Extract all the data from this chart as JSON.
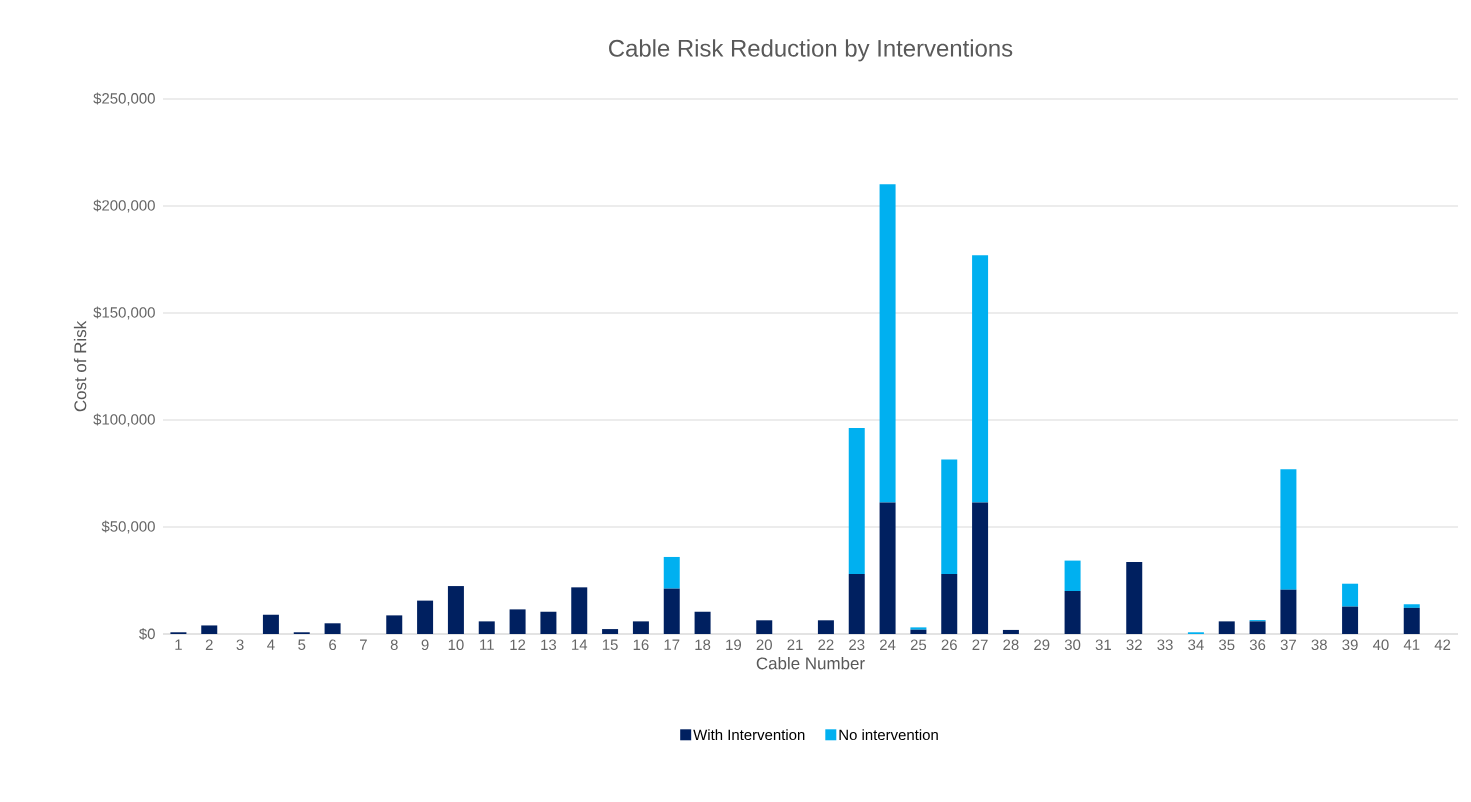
{
  "chart_data": {
    "type": "bar",
    "stacked": true,
    "title": "Cable Risk Reduction by Interventions",
    "xlabel": "Cable Number",
    "ylabel": "Cost of Risk",
    "categories": [
      "1",
      "2",
      "3",
      "4",
      "5",
      "6",
      "7",
      "8",
      "9",
      "10",
      "11",
      "12",
      "13",
      "14",
      "15",
      "16",
      "17",
      "18",
      "19",
      "20",
      "21",
      "22",
      "23",
      "24",
      "25",
      "26",
      "27",
      "28",
      "29",
      "30",
      "31",
      "32",
      "33",
      "34",
      "35",
      "36",
      "37",
      "38",
      "39",
      "40",
      "41",
      "42"
    ],
    "series": [
      {
        "name": "With Intervention",
        "color": "#002060",
        "values": [
          800,
          4000,
          0,
          9000,
          800,
          5000,
          0,
          8700,
          15600,
          22400,
          5900,
          11500,
          10400,
          21800,
          2300,
          5900,
          21200,
          10400,
          0,
          6400,
          0,
          6400,
          28000,
          61500,
          2000,
          28000,
          61500,
          1900,
          0,
          20100,
          0,
          33700,
          0,
          0,
          5900,
          5900,
          20700,
          0,
          12800,
          0,
          12200,
          0
        ]
      },
      {
        "name": "No intervention",
        "color": "#00b0f0",
        "values": [
          0,
          0,
          0,
          0,
          0,
          0,
          0,
          0,
          0,
          0,
          0,
          0,
          0,
          0,
          0,
          0,
          14800,
          0,
          0,
          0,
          0,
          0,
          68300,
          148700,
          1100,
          53500,
          115500,
          0,
          0,
          14200,
          0,
          0,
          0,
          800,
          0,
          600,
          56300,
          0,
          10700,
          0,
          1700,
          0
        ]
      }
    ],
    "ylim": [
      0,
      250000
    ],
    "yticks": [
      {
        "value": 0,
        "label": "$0"
      },
      {
        "value": 50000,
        "label": "$50,000"
      },
      {
        "value": 100000,
        "label": "$100,000"
      },
      {
        "value": 150000,
        "label": "$150,000"
      },
      {
        "value": 200000,
        "label": "$200,000"
      },
      {
        "value": 250000,
        "label": "$250,000"
      }
    ],
    "grid": "y",
    "legend": "bottom"
  }
}
